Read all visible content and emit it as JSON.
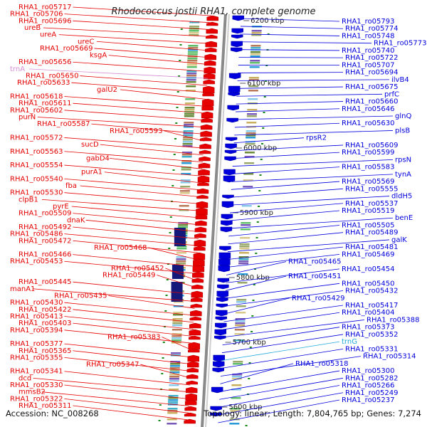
{
  "title": "Rhodococcus jostii RHA1, complete genome",
  "footer": {
    "accession": "Accession: NC_008268",
    "topology": "Topology: linear; Length: 7,804,765 bp; Genes: 7,274"
  },
  "colors": {
    "forward": "#e60000",
    "reverse": "#0000dd",
    "rna": "#d48fd4",
    "trna": "#22aadd"
  },
  "scale_labels": [
    {
      "label": "6200 kbp"
    },
    {
      "label": "6100 kbp"
    },
    {
      "label": "6000 kbp"
    },
    {
      "label": "5900 kbp"
    },
    {
      "label": "5800 kbp"
    },
    {
      "label": "5700 kbp"
    },
    {
      "label": "5600 kbp"
    }
  ],
  "left_labels": [
    {
      "text": "RHA1_ro05717"
    },
    {
      "text": "RHA1_ro05706"
    },
    {
      "text": "RHA1_ro05696"
    },
    {
      "text": "ureB"
    },
    {
      "text": "ureA"
    },
    {
      "text": "ureC"
    },
    {
      "text": "RHA1_ro05669"
    },
    {
      "text": "ksgA"
    },
    {
      "text": "RHA1_ro05656"
    },
    {
      "text": "trnA",
      "kind": "rna"
    },
    {
      "text": "RHA1_ro05650"
    },
    {
      "text": "RHA1_ro05633"
    },
    {
      "text": "galU2"
    },
    {
      "text": "RHA1_ro05618"
    },
    {
      "text": "RHA1_ro05611"
    },
    {
      "text": "RHA1_ro05602"
    },
    {
      "text": "purN"
    },
    {
      "text": "RHA1_ro05587"
    },
    {
      "text": "RHA1_ro05593"
    },
    {
      "text": "RHA1_ro05572"
    },
    {
      "text": "sucD"
    },
    {
      "text": "RHA1_ro05563"
    },
    {
      "text": "gabD4"
    },
    {
      "text": "RHA1_ro05554"
    },
    {
      "text": "purA1"
    },
    {
      "text": "RHA1_ro05540"
    },
    {
      "text": "fba"
    },
    {
      "text": "RHA1_ro05530"
    },
    {
      "text": "clpB1"
    },
    {
      "text": "pyrE"
    },
    {
      "text": "RHA1_ro05509"
    },
    {
      "text": "dnaK"
    },
    {
      "text": "RHA1_ro05492"
    },
    {
      "text": "RHA1_ro05486"
    },
    {
      "text": "RHA1_ro05472"
    },
    {
      "text": "RHA1_ro05468"
    },
    {
      "text": "RHA1_ro05466"
    },
    {
      "text": "RHA1_ro05453"
    },
    {
      "text": "RHA1_ro05452"
    },
    {
      "text": "RHA1_ro05449"
    },
    {
      "text": "RHA1_ro05445"
    },
    {
      "text": "manA1"
    },
    {
      "text": "RHA1_ro05435"
    },
    {
      "text": "RHA1_ro05430"
    },
    {
      "text": "RHA1_ro05422"
    },
    {
      "text": "RHA1_ro05413"
    },
    {
      "text": "RHA1_ro05403"
    },
    {
      "text": "RHA1_ro05394"
    },
    {
      "text": "RHA1_ro05383"
    },
    {
      "text": "RHA1_ro05377"
    },
    {
      "text": "RHA1_ro05365"
    },
    {
      "text": "RHA1_ro05355"
    },
    {
      "text": "RHA1_ro05347"
    },
    {
      "text": "RHA1_ro05341"
    },
    {
      "text": "dcd"
    },
    {
      "text": "RHA1_ro05330"
    },
    {
      "text": "mmsB2"
    },
    {
      "text": "RHA1_ro05322"
    },
    {
      "text": "RHA1_ro05311"
    }
  ],
  "right_labels": [
    {
      "text": "RHA1_ro05793"
    },
    {
      "text": "RHA1_ro05774"
    },
    {
      "text": "RHA1_ro05748"
    },
    {
      "text": "RHA1_ro05773"
    },
    {
      "text": "RHA1_ro05740"
    },
    {
      "text": "RHA1_ro05722"
    },
    {
      "text": "RHA1_ro05707"
    },
    {
      "text": "RHA1_ro05694"
    },
    {
      "text": "ilvB4"
    },
    {
      "text": "RHA1_ro05675"
    },
    {
      "text": "prfC"
    },
    {
      "text": "RHA1_ro05660"
    },
    {
      "text": "RHA1_ro05646"
    },
    {
      "text": "glnQ"
    },
    {
      "text": "RHA1_ro05630"
    },
    {
      "text": "plsB"
    },
    {
      "text": "rpsR2"
    },
    {
      "text": "RHA1_ro05609"
    },
    {
      "text": "RHA1_ro05599"
    },
    {
      "text": "rpsN"
    },
    {
      "text": "RHA1_ro05583"
    },
    {
      "text": "tynA"
    },
    {
      "text": "RHA1_ro05569"
    },
    {
      "text": "RHA1_ro05555"
    },
    {
      "text": "dldH5"
    },
    {
      "text": "RHA1_ro05537"
    },
    {
      "text": "RHA1_ro05519"
    },
    {
      "text": "benE"
    },
    {
      "text": "RHA1_ro05505"
    },
    {
      "text": "RHA1_ro05489"
    },
    {
      "text": "galK"
    },
    {
      "text": "RHA1_ro05481"
    },
    {
      "text": "RHA1_ro05469"
    },
    {
      "text": "RHA1_ro05465"
    },
    {
      "text": "RHA1_ro05454"
    },
    {
      "text": "RHA1_ro05451"
    },
    {
      "text": "RHA1_ro05450"
    },
    {
      "text": "RHA1_ro05432"
    },
    {
      "text": "RHA1_ro05429"
    },
    {
      "text": "RHA1_ro05417"
    },
    {
      "text": "RHA1_ro05404"
    },
    {
      "text": "RHA1_ro05388"
    },
    {
      "text": "RHA1_ro05373"
    },
    {
      "text": "RHA1_ro05352"
    },
    {
      "text": "trnG",
      "kind": "trna"
    },
    {
      "text": "RHA1_ro05331"
    },
    {
      "text": "RHA1_ro05314"
    },
    {
      "text": "RHA1_ro05318"
    },
    {
      "text": "RHA1_ro05300"
    },
    {
      "text": "RHA1_ro05282"
    },
    {
      "text": "RHA1_ro05266"
    },
    {
      "text": "RHA1_ro05249"
    },
    {
      "text": "RHA1_ro05237"
    }
  ]
}
